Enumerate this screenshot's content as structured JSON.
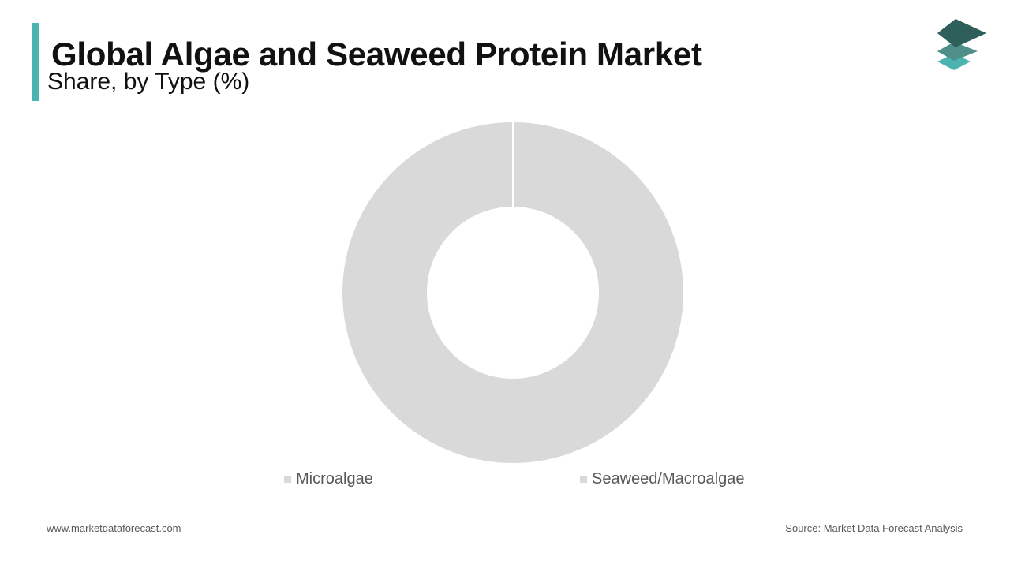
{
  "header": {
    "title": "Global Algae and Seaweed Protein Market",
    "subtitle": "Share, by Type (%)"
  },
  "colors": {
    "accent": "#4bb3b0",
    "slice": "#d9d9d9",
    "logo_top": "#2f5f5a",
    "logo_mid": "#4e8f8a",
    "logo_bottom": "#4bb3b0"
  },
  "logo": {
    "icon": "stacked-layers-icon"
  },
  "chart_data": {
    "type": "pie",
    "variant": "donut",
    "categories": [
      "Microalgae",
      "Seaweed/Macroalgae"
    ],
    "values": [
      0,
      100
    ],
    "slice_colors": [
      "#d9d9d9",
      "#d9d9d9"
    ],
    "legend_position": "bottom"
  },
  "footer": {
    "website": "www.marketdataforecast.com",
    "source": "Source: Market Data Forecast Analysis"
  }
}
